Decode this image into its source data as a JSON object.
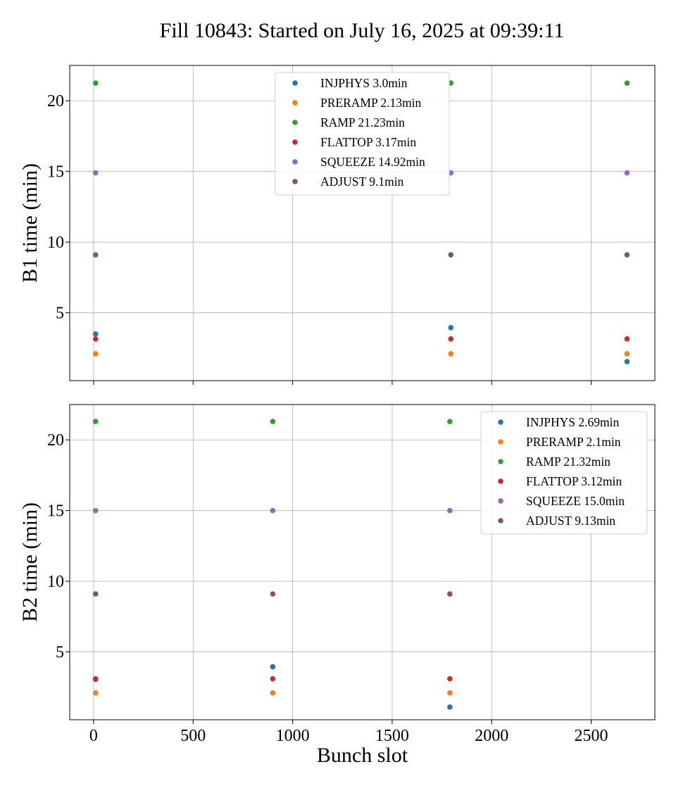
{
  "title": "Fill 10843: Started on July 16, 2025 at 09:39:11",
  "chart_data": [
    {
      "type": "scatter",
      "ylabel": "B1 time (min)",
      "xlabel": "",
      "xlim": [
        -120,
        2820
      ],
      "ylim": [
        0.2,
        22.5
      ],
      "xticks": [
        0,
        500,
        1000,
        1500,
        2000,
        2500
      ],
      "yticks": [
        5,
        10,
        15,
        20
      ],
      "show_xtick_labels": false,
      "grid": true,
      "legend_position": "upper-center",
      "x": [
        10,
        1795,
        2680
      ],
      "series": [
        {
          "name": "INJPHYS 3.0min",
          "color": "#1f77b4",
          "values": [
            3.5,
            3.95,
            1.55
          ]
        },
        {
          "name": "PRERAMP 2.13min",
          "color": "#ff7f0e",
          "values": [
            2.1,
            2.1,
            2.1
          ]
        },
        {
          "name": "RAMP 21.23min",
          "color": "#2ca02c",
          "values": [
            21.25,
            21.25,
            21.25
          ]
        },
        {
          "name": "FLATTOP 3.17min",
          "color": "#d62728",
          "values": [
            3.15,
            3.15,
            3.15
          ]
        },
        {
          "name": "SQUEEZE 14.92min",
          "color": "#9467bd",
          "values": [
            14.9,
            14.9,
            14.9
          ]
        },
        {
          "name": "ADJUST 9.1min",
          "color": "#8c564b",
          "values": [
            9.1,
            9.1,
            9.1
          ]
        }
      ]
    },
    {
      "type": "scatter",
      "ylabel": "B2 time (min)",
      "xlabel": "Bunch slot",
      "xlim": [
        -120,
        2820
      ],
      "ylim": [
        0.2,
        22.5
      ],
      "xticks": [
        0,
        500,
        1000,
        1500,
        2000,
        2500
      ],
      "yticks": [
        5,
        10,
        15,
        20
      ],
      "show_xtick_labels": true,
      "grid": true,
      "legend_position": "upper-right",
      "x": [
        10,
        900,
        1790
      ],
      "series": [
        {
          "name": "INJPHYS 2.69min",
          "color": "#1f77b4",
          "values": [
            3.05,
            3.95,
            1.1
          ]
        },
        {
          "name": "PRERAMP 2.1min",
          "color": "#ff7f0e",
          "values": [
            2.1,
            2.1,
            2.1
          ]
        },
        {
          "name": "RAMP 21.32min",
          "color": "#2ca02c",
          "values": [
            21.3,
            21.3,
            21.3
          ]
        },
        {
          "name": "FLATTOP 3.12min",
          "color": "#d62728",
          "values": [
            3.1,
            3.1,
            3.1
          ]
        },
        {
          "name": "SQUEEZE 15.0min",
          "color": "#9467bd",
          "values": [
            15.0,
            15.0,
            15.0
          ]
        },
        {
          "name": "ADJUST 9.13min",
          "color": "#8c564b",
          "values": [
            9.1,
            9.1,
            9.1
          ]
        }
      ]
    }
  ]
}
